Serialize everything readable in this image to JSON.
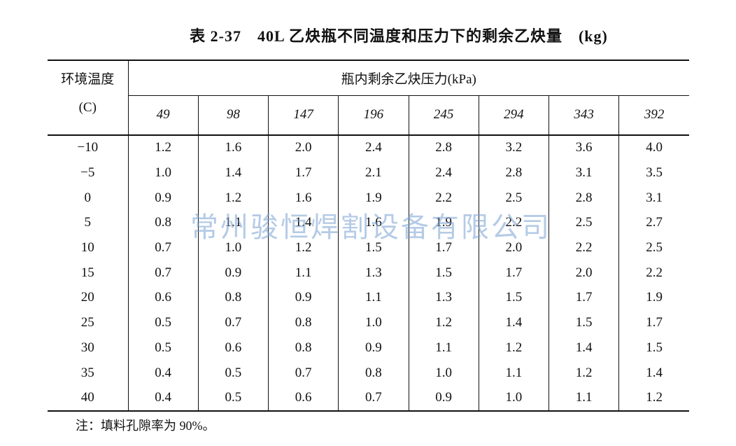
{
  "title": "表 2-37　40L 乙炔瓶不同温度和压力下的剩余乙炔量　(kg)",
  "table": {
    "header_left": "环境温度",
    "header_left_unit": "(C)",
    "header_group": "瓶内剩余乙炔压力(kPa)",
    "columns": [
      "49",
      "98",
      "147",
      "196",
      "245",
      "294",
      "343",
      "392"
    ],
    "rows": [
      [
        "−10",
        "1.2",
        "1.6",
        "2.0",
        "2.4",
        "2.8",
        "3.2",
        "3.6",
        "4.0"
      ],
      [
        "−5",
        "1.0",
        "1.4",
        "1.7",
        "2.1",
        "2.4",
        "2.8",
        "3.1",
        "3.5"
      ],
      [
        "0",
        "0.9",
        "1.2",
        "1.6",
        "1.9",
        "2.2",
        "2.5",
        "2.8",
        "3.1"
      ],
      [
        "5",
        "0.8",
        "1.1",
        "1.4",
        "1.6",
        "1.9",
        "2.2",
        "2.5",
        "2.7"
      ],
      [
        "10",
        "0.7",
        "1.0",
        "1.2",
        "1.5",
        "1.7",
        "2.0",
        "2.2",
        "2.5"
      ],
      [
        "15",
        "0.7",
        "0.9",
        "1.1",
        "1.3",
        "1.5",
        "1.7",
        "2.0",
        "2.2"
      ],
      [
        "20",
        "0.6",
        "0.8",
        "0.9",
        "1.1",
        "1.3",
        "1.5",
        "1.7",
        "1.9"
      ],
      [
        "25",
        "0.5",
        "0.7",
        "0.8",
        "1.0",
        "1.2",
        "1.4",
        "1.5",
        "1.7"
      ],
      [
        "30",
        "0.5",
        "0.6",
        "0.8",
        "0.9",
        "1.1",
        "1.2",
        "1.4",
        "1.5"
      ],
      [
        "35",
        "0.4",
        "0.5",
        "0.7",
        "0.8",
        "1.0",
        "1.1",
        "1.2",
        "1.4"
      ],
      [
        "40",
        "0.4",
        "0.5",
        "0.6",
        "0.7",
        "0.9",
        "1.0",
        "1.1",
        "1.2"
      ]
    ]
  },
  "note": "注：填料孔隙率为 90%。",
  "watermark": "常州骏恒焊割设备有限公司"
}
